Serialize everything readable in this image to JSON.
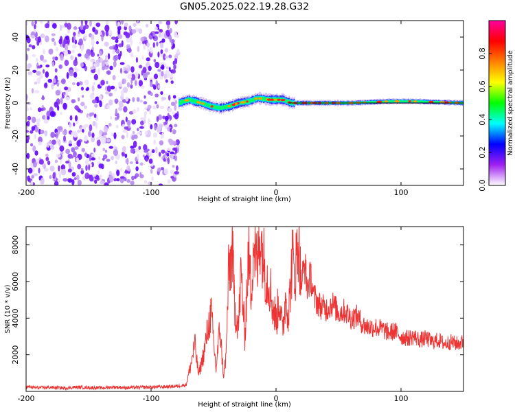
{
  "title": "GN05.2025.022.19.28.G32",
  "chart_data": [
    {
      "type": "heatmap",
      "title": "GN05.2025.022.19.28.G32",
      "xlabel": "Height of straight line (km)",
      "ylabel": "Frequency (Hz)",
      "xlim": [
        -200,
        150
      ],
      "ylim": [
        -50,
        50
      ],
      "x_ticks": [
        "-200",
        "-100",
        "0",
        "100"
      ],
      "y_ticks": [
        "40",
        "20",
        "0",
        "-20",
        "-40"
      ],
      "colorbar": {
        "label": "Normalized spectral amplitude",
        "range": [
          0,
          1
        ],
        "ticks": [
          "0.0",
          "0.2",
          "0.4",
          "0.6",
          "0.8"
        ],
        "colors": [
          "#ffffff",
          "#a020f0",
          "#0000ff",
          "#00ffff",
          "#00ff00",
          "#ffff00",
          "#ff8000",
          "#ff0000",
          "#ff00a0"
        ]
      },
      "noise_region_x": [
        -200,
        -78
      ],
      "signal_region_x": [
        -78,
        150
      ],
      "signal_centerline": [
        {
          "x": -78,
          "f": 0
        },
        {
          "x": -70,
          "f": 2
        },
        {
          "x": -60,
          "f": 0
        },
        {
          "x": -52,
          "f": -2
        },
        {
          "x": -45,
          "f": -3
        },
        {
          "x": -38,
          "f": -2
        },
        {
          "x": -30,
          "f": 0
        },
        {
          "x": -22,
          "f": 1
        },
        {
          "x": -15,
          "f": 3
        },
        {
          "x": -5,
          "f": 2
        },
        {
          "x": 5,
          "f": 2
        },
        {
          "x": 12,
          "f": 0
        },
        {
          "x": 30,
          "f": 0
        },
        {
          "x": 60,
          "f": 0
        },
        {
          "x": 90,
          "f": 1
        },
        {
          "x": 110,
          "f": 1
        },
        {
          "x": 150,
          "f": 0
        }
      ]
    },
    {
      "type": "line",
      "xlabel": "Height of straight line (km)",
      "ylabel": "SNR (10 * v/v)",
      "xlim": [
        -200,
        150
      ],
      "ylim": [
        0,
        9000
      ],
      "x_ticks": [
        "-200",
        "-100",
        "0",
        "100"
      ],
      "y_ticks": [
        "8000",
        "6000",
        "4000",
        "2000"
      ],
      "color": "#ee3333",
      "series": [
        {
          "x": [
            -200,
            -190,
            -180,
            -170,
            -160,
            -150,
            -140,
            -130,
            -120,
            -110,
            -100,
            -90,
            -80,
            -72,
            -68,
            -65,
            -62,
            -58,
            -55,
            -52,
            -48,
            -45,
            -42,
            -40,
            -38,
            -35,
            -33,
            -30,
            -28,
            -25,
            -22,
            -20,
            -18,
            -15,
            -13,
            -10,
            -8,
            -5,
            -3,
            0,
            3,
            5,
            8,
            10,
            13,
            15,
            18,
            20,
            23,
            25,
            28,
            30,
            35,
            40,
            45,
            50,
            55,
            60,
            65,
            70,
            75,
            80,
            85,
            90,
            95,
            100,
            105,
            110,
            115,
            120,
            125,
            130,
            135,
            140,
            145,
            150
          ],
          "y": [
            250,
            200,
            220,
            180,
            230,
            210,
            190,
            240,
            200,
            220,
            230,
            250,
            280,
            350,
            1500,
            2600,
            900,
            2000,
            3200,
            4300,
            1200,
            3500,
            800,
            1900,
            6300,
            7700,
            4500,
            3600,
            6500,
            3000,
            7600,
            5500,
            8200,
            6600,
            8800,
            7300,
            6300,
            5900,
            4800,
            3900,
            5100,
            3200,
            5300,
            4200,
            7300,
            6400,
            8400,
            5900,
            6900,
            5700,
            6300,
            5200,
            4700,
            4500,
            4800,
            4300,
            4400,
            4000,
            4100,
            3600,
            3500,
            3500,
            3400,
            3200,
            3300,
            3000,
            2900,
            3000,
            2800,
            2900,
            2700,
            2800,
            2600,
            2700,
            2600,
            2700
          ]
        }
      ]
    }
  ]
}
